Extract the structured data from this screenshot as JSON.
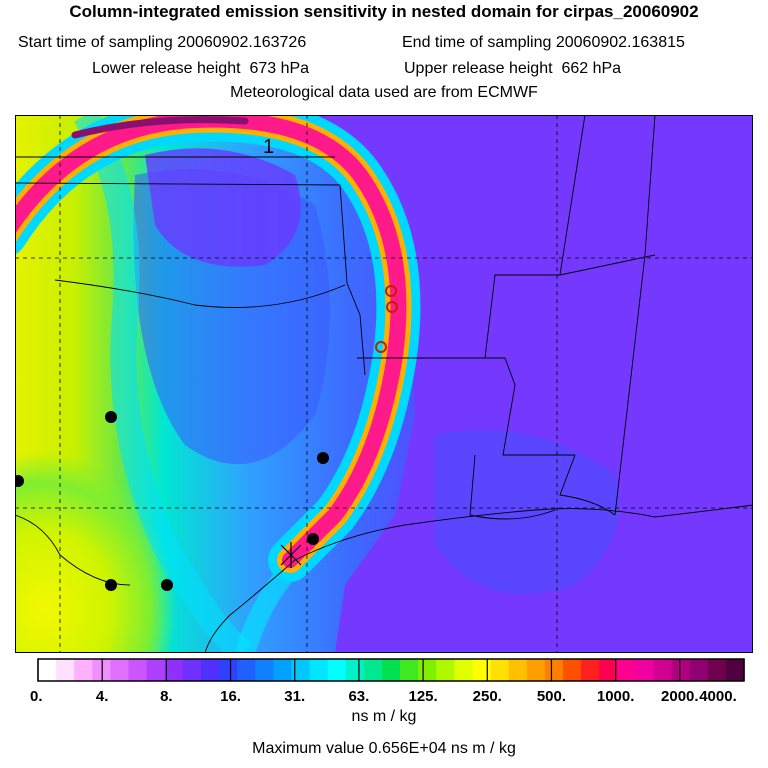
{
  "chart_data": {
    "type": "heatmap",
    "title": "Column-integrated emission sensitivity in nested domain for cirpas_20060902",
    "start_label": "Start time of sampling",
    "start_value": "20060902.163726",
    "end_label": "End time of sampling",
    "end_value": "20060902.163815",
    "lower_label": "Lower release height",
    "lower_value": "673 hPa",
    "upper_label": "Upper release height",
    "upper_value": "662 hPa",
    "met_line": "Meteorological data used are from ECMWF",
    "contour_label": "1",
    "colorbar": {
      "tick_labels": [
        "0.",
        "4.",
        "8.",
        "16.",
        "31.",
        "63.",
        "125.",
        "250.",
        "500.",
        "1000.",
        "2000.",
        "4000."
      ],
      "units": "ns m / kg",
      "colors": [
        "#ffffff",
        "#ffe0ff",
        "#ffb0ff",
        "#f090ff",
        "#e070ff",
        "#cc55ff",
        "#b040ff",
        "#9030ff",
        "#7030ff",
        "#5030ff",
        "#3040ff",
        "#2060ff",
        "#1080ff",
        "#00a0ff",
        "#00c8ff",
        "#00e6ff",
        "#00ffff",
        "#00f0c8",
        "#00e890",
        "#00e050",
        "#40e820",
        "#80f000",
        "#b0f800",
        "#e0ff00",
        "#ffff00",
        "#ffe000",
        "#ffc000",
        "#ffa000",
        "#ff8000",
        "#ff5000",
        "#ff2020",
        "#ff0050",
        "#ff0090",
        "#f000a0",
        "#d00090",
        "#b00080",
        "#900070",
        "#700050",
        "#500040"
      ]
    },
    "max_text": "Maximum value  0.656E+04 ns m / kg"
  }
}
